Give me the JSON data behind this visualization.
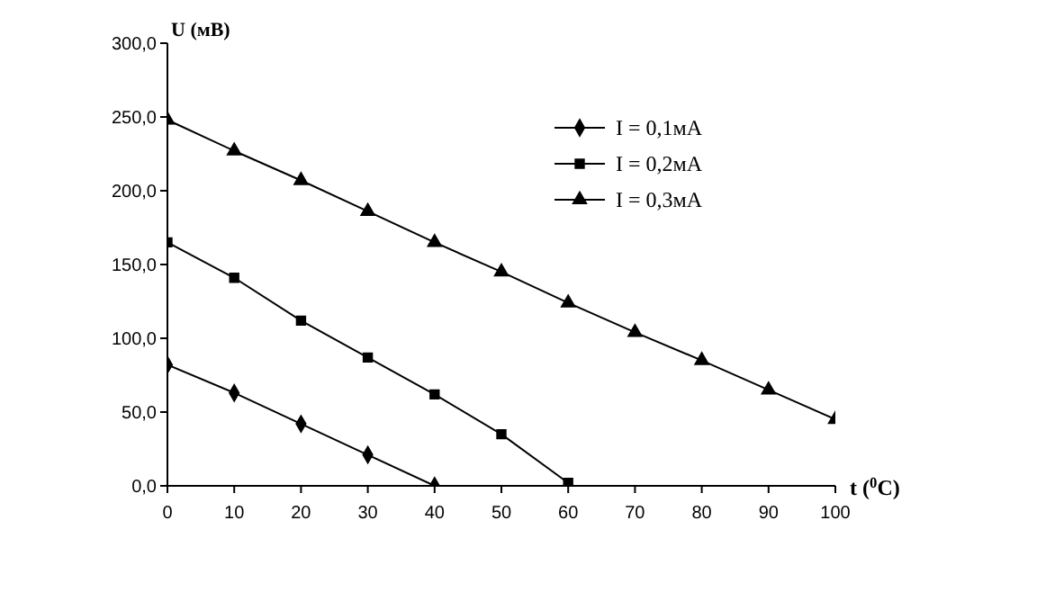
{
  "chart_data": {
    "type": "line",
    "xlabel": "t ($^{0}$C)",
    "ylabel": "U (мВ)",
    "series": [
      {
        "name": "I = 0,1мА",
        "color": "#000000",
        "marker": "diamond",
        "x": [
          0,
          10,
          20,
          30,
          40
        ],
        "values": [
          82,
          63,
          42,
          21,
          0
        ]
      },
      {
        "name": "I = 0,2мА",
        "color": "#000000",
        "marker": "square",
        "x": [
          0,
          10,
          20,
          30,
          40,
          50,
          60
        ],
        "values": [
          165,
          141,
          112,
          87,
          62,
          35,
          2
        ]
      },
      {
        "name": "I = 0,3мА",
        "color": "#000000",
        "marker": "triangle",
        "x": [
          0,
          10,
          20,
          30,
          40,
          50,
          60,
          70,
          80,
          90,
          100
        ],
        "values": [
          248,
          227,
          207,
          186,
          165,
          145,
          124,
          104,
          85,
          65,
          45
        ]
      }
    ],
    "xlim": [
      0,
      100
    ],
    "xticks": [
      0,
      10,
      20,
      30,
      40,
      50,
      60,
      70,
      80,
      90,
      100
    ],
    "ylim": [
      0,
      300
    ],
    "yticks": [
      {
        "value": 0,
        "label": "0,0"
      },
      {
        "value": 50,
        "label": "50,0"
      },
      {
        "value": 100,
        "label": "100,0"
      },
      {
        "value": 150,
        "label": "150,0"
      },
      {
        "value": 200,
        "label": "200,0"
      },
      {
        "value": 250,
        "label": "250,0"
      },
      {
        "value": 300,
        "label": "300,0"
      }
    ],
    "grid": false,
    "legend": "top right",
    "line_style": "solid"
  }
}
